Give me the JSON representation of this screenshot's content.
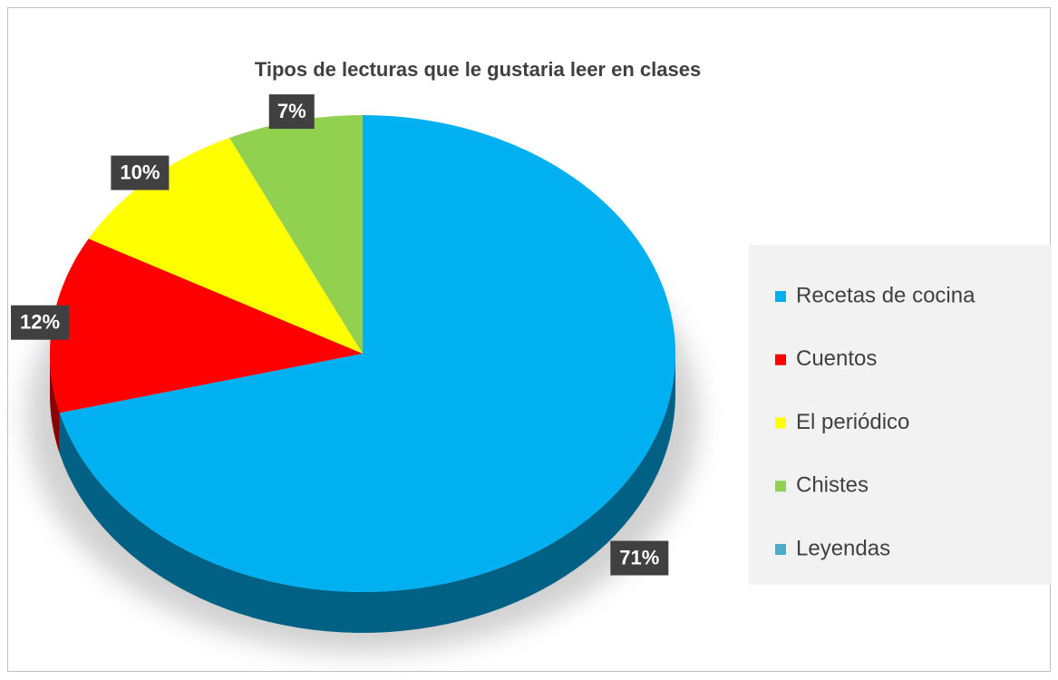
{
  "chart_data": {
    "type": "pie",
    "title": "Tipos de lecturas que le gustaria leer en clases",
    "categories": [
      "Recetas de cocina",
      "Cuentos",
      "El periódico",
      "Chistes",
      "Leyendas"
    ],
    "values": [
      71,
      12,
      10,
      7,
      0
    ],
    "value_labels": [
      "71%",
      "12%",
      "10%",
      "7%",
      null
    ],
    "colors": [
      "#00b0f0",
      "#ff0000",
      "#ffff00",
      "#92d050",
      "#4bacc6"
    ],
    "legend": "right"
  }
}
